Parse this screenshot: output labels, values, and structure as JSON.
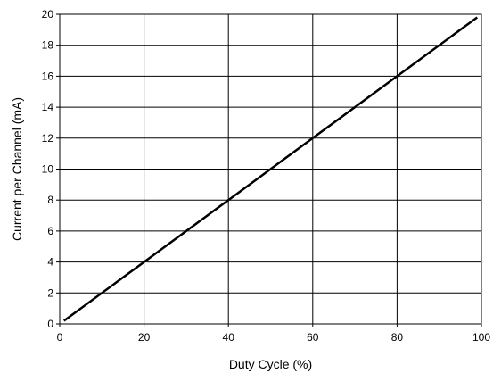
{
  "chart_data": {
    "type": "line",
    "title": "",
    "xlabel": "Duty Cycle (%)",
    "ylabel": "Current per Channel (mA)",
    "xlim": [
      0,
      100
    ],
    "ylim": [
      0,
      20
    ],
    "xticks": [
      0,
      20,
      40,
      60,
      80,
      100
    ],
    "yticks": [
      0,
      2,
      4,
      6,
      8,
      10,
      12,
      14,
      16,
      18,
      20
    ],
    "grid": true,
    "legend": "none",
    "series": [
      {
        "x": [
          1,
          20,
          40,
          60,
          80,
          99
        ],
        "y": [
          0.2,
          4,
          8,
          12,
          16,
          19.8
        ],
        "color": "#000000"
      }
    ]
  }
}
